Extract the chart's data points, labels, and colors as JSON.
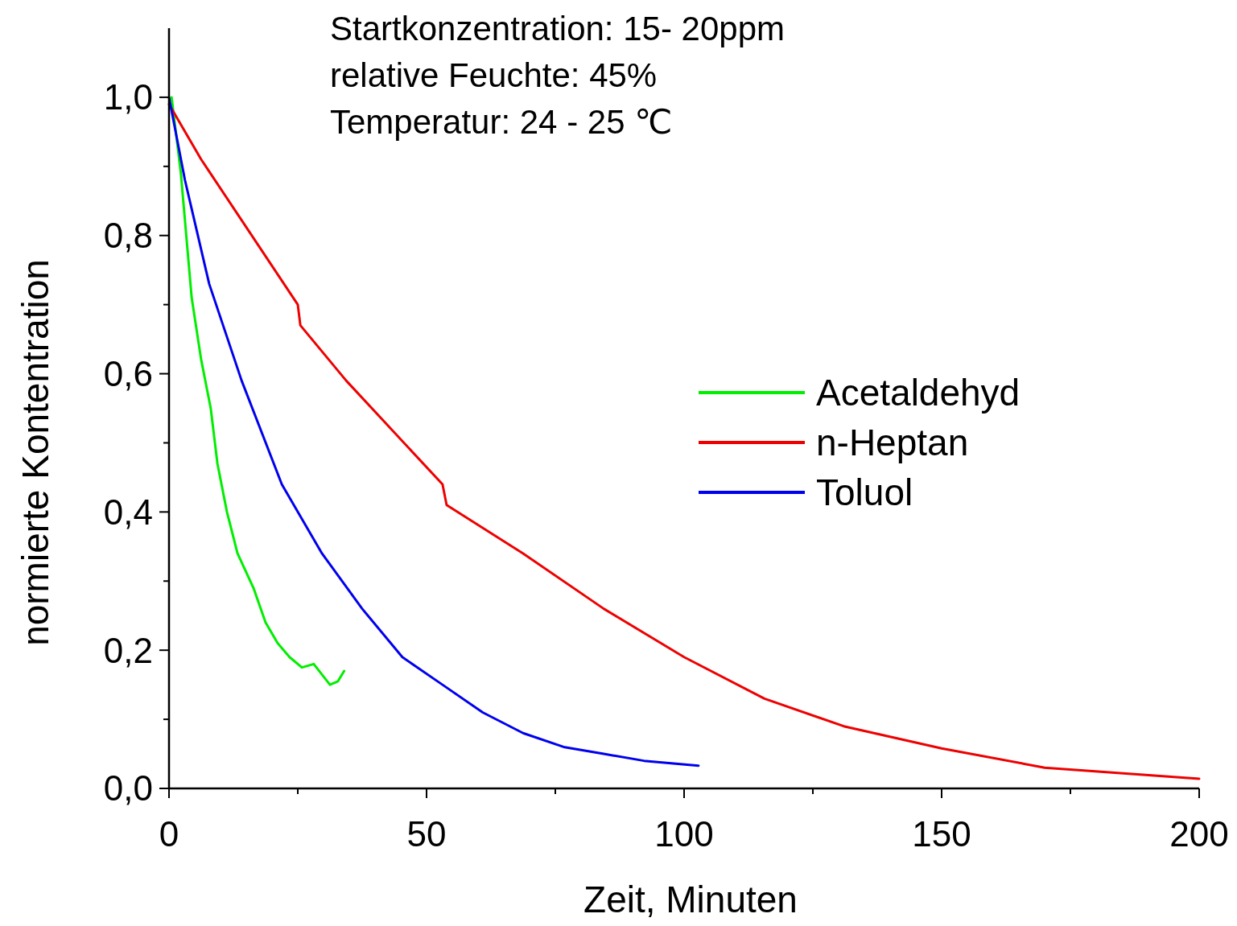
{
  "chart_data": {
    "type": "line",
    "xlabel": "Zeit, Minuten",
    "ylabel": "normierte Kontentration",
    "annotations": [
      "Startkonzentration: 15- 20ppm",
      "relative Feuchte: 45%",
      "Temperatur: 24 - 25 ℃"
    ],
    "xlim": [
      0,
      200
    ],
    "ylim": [
      0,
      1.1
    ],
    "xticks": [
      0,
      {
        "value": 25,
        "label": null
      },
      50,
      {
        "value": 75,
        "label": null
      },
      100,
      {
        "value": 125,
        "label": null
      },
      150,
      {
        "value": 175,
        "label": null
      },
      200
    ],
    "yticks": [
      {
        "value": 0,
        "label": "0,0"
      },
      {
        "value": 0.1,
        "label": null
      },
      {
        "value": 0.2,
        "label": "0,2"
      },
      {
        "value": 0.3,
        "label": null
      },
      {
        "value": 0.4,
        "label": "0,4"
      },
      {
        "value": 0.5,
        "label": null
      },
      {
        "value": 0.6,
        "label": "0,6"
      },
      {
        "value": 0.7,
        "label": null
      },
      {
        "value": 0.8,
        "label": "0,8"
      },
      {
        "value": 0.9,
        "label": null
      },
      {
        "value": 1.0,
        "label": "1,0"
      }
    ],
    "legend": "right",
    "grid": false,
    "marker": "none",
    "line_style": "solid",
    "series": [
      {
        "name": "Acetaldehyd",
        "color": "#00ee00",
        "x": [
          0.5,
          2.3,
          4.4,
          6.25,
          8.1,
          9.4,
          11.25,
          13.3,
          16.4,
          18.75,
          21.1,
          23.4,
          25.8,
          28.1,
          31.25,
          32.8,
          34
        ],
        "values": [
          1.0,
          0.89,
          0.71,
          0.62,
          0.55,
          0.47,
          0.4,
          0.34,
          0.29,
          0.24,
          0.21,
          0.19,
          0.175,
          0.18,
          0.15,
          0.155,
          0.17
        ]
      },
      {
        "name": "n-Heptan",
        "color": "#ee0000",
        "x": [
          0,
          6.25,
          12.5,
          25,
          25.5,
          34.4,
          53.1,
          53.9,
          68.75,
          84.4,
          100,
          115.6,
          131,
          150,
          170,
          200
        ],
        "values": [
          0.99,
          0.91,
          0.84,
          0.7,
          0.67,
          0.59,
          0.44,
          0.41,
          0.34,
          0.26,
          0.19,
          0.13,
          0.09,
          0.058,
          0.03,
          0.014
        ]
      },
      {
        "name": "Toluol",
        "color": "#0000ee",
        "x": [
          0,
          3.1,
          7.8,
          14.1,
          21.9,
          29.7,
          37.5,
          45.3,
          53.1,
          60.9,
          68.75,
          76.6,
          84.4,
          92.2,
          102.8
        ],
        "values": [
          1.0,
          0.88,
          0.73,
          0.59,
          0.44,
          0.34,
          0.26,
          0.19,
          0.15,
          0.11,
          0.08,
          0.06,
          0.05,
          0.04,
          0.033
        ]
      }
    ]
  }
}
